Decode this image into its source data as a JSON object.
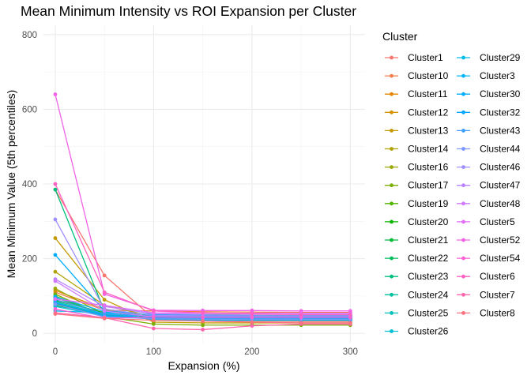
{
  "chart_data": {
    "type": "line",
    "title": "Mean Minimum Intensity vs ROI Expansion per Cluster",
    "xlabel": "Expansion (%)",
    "ylabel": "Mean Minimum Value (5th percentiles)",
    "x": [
      0,
      50,
      100,
      150,
      200,
      250,
      300
    ],
    "xlim": [
      -12,
      315
    ],
    "ylim": [
      -25,
      825
    ],
    "x_ticks": [
      0,
      100,
      200,
      300
    ],
    "y_ticks": [
      0,
      200,
      400,
      600,
      800
    ],
    "grid": true,
    "legend_title": "Cluster",
    "legend_position": "right",
    "series": [
      {
        "name": "Cluster1",
        "color": "#F8766D",
        "values": [
          385,
          155,
          40,
          35,
          33,
          32,
          32
        ]
      },
      {
        "name": "Cluster10",
        "color": "#F07F4B",
        "values": [
          110,
          62,
          60,
          58,
          57,
          56,
          56
        ]
      },
      {
        "name": "Cluster11",
        "color": "#E58700",
        "values": [
          90,
          55,
          45,
          42,
          40,
          40,
          40
        ]
      },
      {
        "name": "Cluster12",
        "color": "#D69100",
        "values": [
          115,
          65,
          40,
          38,
          37,
          37,
          37
        ]
      },
      {
        "name": "Cluster13",
        "color": "#C49A00",
        "values": [
          255,
          90,
          30,
          28,
          28,
          28,
          28
        ]
      },
      {
        "name": "Cluster14",
        "color": "#AFA200",
        "values": [
          165,
          75,
          45,
          43,
          42,
          41,
          41
        ]
      },
      {
        "name": "Cluster16",
        "color": "#99A800",
        "values": [
          120,
          50,
          48,
          46,
          45,
          45,
          45
        ]
      },
      {
        "name": "Cluster17",
        "color": "#7CAE00",
        "values": [
          105,
          45,
          25,
          22,
          22,
          22,
          22
        ]
      },
      {
        "name": "Cluster19",
        "color": "#53B400",
        "values": [
          100,
          48,
          38,
          36,
          35,
          35,
          35
        ]
      },
      {
        "name": "Cluster20",
        "color": "#0BB600",
        "values": [
          88,
          55,
          43,
          42,
          42,
          42,
          42
        ]
      },
      {
        "name": "Cluster21",
        "color": "#00BA38",
        "values": [
          75,
          50,
          40,
          38,
          38,
          38,
          38
        ]
      },
      {
        "name": "Cluster22",
        "color": "#00BD5C",
        "values": [
          80,
          45,
          50,
          49,
          48,
          48,
          48
        ]
      },
      {
        "name": "Cluster23",
        "color": "#00BF7D",
        "values": [
          385,
          60,
          45,
          43,
          42,
          42,
          42
        ]
      },
      {
        "name": "Cluster24",
        "color": "#00C09D",
        "values": [
          95,
          52,
          38,
          36,
          36,
          36,
          36
        ]
      },
      {
        "name": "Cluster25",
        "color": "#00C1BA",
        "values": [
          85,
          50,
          47,
          46,
          46,
          46,
          46
        ]
      },
      {
        "name": "Cluster26",
        "color": "#00BFD4",
        "values": [
          72,
          46,
          41,
          40,
          40,
          40,
          40
        ]
      },
      {
        "name": "Cluster29",
        "color": "#00BBEA",
        "values": [
          60,
          55,
          44,
          43,
          43,
          43,
          43
        ]
      },
      {
        "name": "Cluster3",
        "color": "#00B5FA",
        "values": [
          98,
          58,
          36,
          35,
          35,
          35,
          35
        ]
      },
      {
        "name": "Cluster30",
        "color": "#00ADFA",
        "values": [
          210,
          60,
          50,
          48,
          47,
          47,
          47
        ]
      },
      {
        "name": "Cluster32",
        "color": "#00A6FF",
        "values": [
          82,
          48,
          42,
          41,
          41,
          41,
          41
        ]
      },
      {
        "name": "Cluster43",
        "color": "#3F9EFF",
        "values": [
          90,
          52,
          46,
          45,
          45,
          45,
          45
        ]
      },
      {
        "name": "Cluster44",
        "color": "#7D96FF",
        "values": [
          78,
          44,
          39,
          38,
          38,
          38,
          38
        ]
      },
      {
        "name": "Cluster46",
        "color": "#9E8FFF",
        "values": [
          305,
          65,
          48,
          47,
          47,
          47,
          47
        ]
      },
      {
        "name": "Cluster47",
        "color": "#B983FF",
        "values": [
          145,
          72,
          52,
          51,
          51,
          51,
          51
        ]
      },
      {
        "name": "Cluster48",
        "color": "#CF7AFF",
        "values": [
          140,
          60,
          44,
          43,
          43,
          43,
          43
        ]
      },
      {
        "name": "Cluster5",
        "color": "#E26EF7",
        "values": [
          92,
          75,
          55,
          54,
          54,
          54,
          54
        ]
      },
      {
        "name": "Cluster52",
        "color": "#F063E7",
        "values": [
          640,
          105,
          62,
          61,
          61,
          60,
          60
        ]
      },
      {
        "name": "Cluster54",
        "color": "#FA60D5",
        "values": [
          65,
          40,
          44,
          43,
          43,
          43,
          43
        ]
      },
      {
        "name": "Cluster6",
        "color": "#FF61C3",
        "values": [
          400,
          110,
          60,
          55,
          52,
          50,
          50
        ]
      },
      {
        "name": "Cluster7",
        "color": "#FF65AF",
        "values": [
          55,
          42,
          13,
          10,
          20,
          25,
          25
        ]
      },
      {
        "name": "Cluster8",
        "color": "#FC717F",
        "values": [
          52,
          40,
          35,
          33,
          30,
          28,
          28
        ]
      }
    ]
  }
}
